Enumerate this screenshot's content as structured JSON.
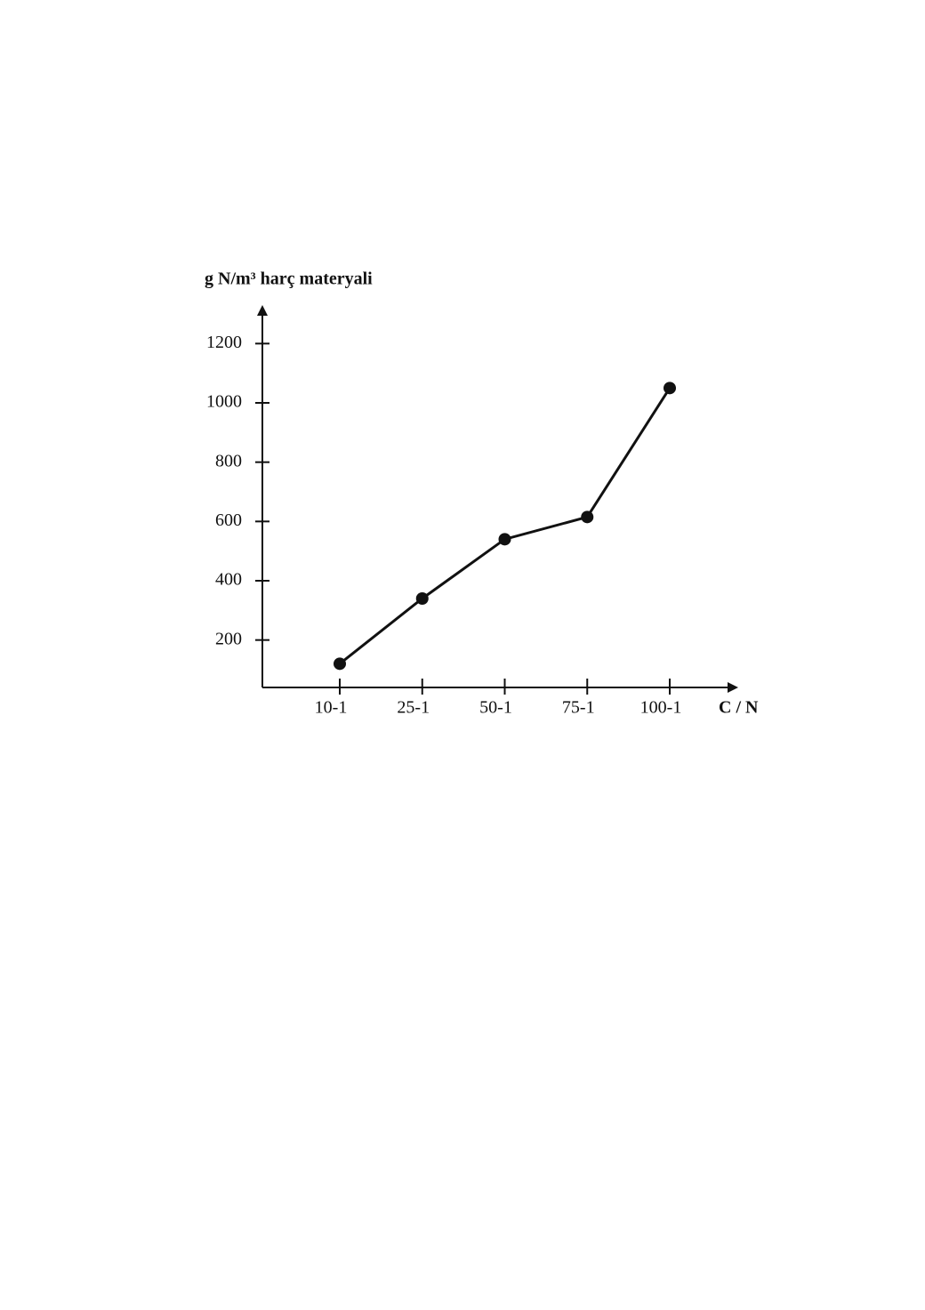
{
  "chart_data": {
    "type": "line",
    "y_label": "g N/m³ harç materyali",
    "x_label": "C / N",
    "categories": [
      "10-1",
      "25-1",
      "50-1",
      "75-1",
      "100-1"
    ],
    "values": [
      120,
      340,
      540,
      615,
      1050
    ],
    "color": "#111111",
    "ylim": [
      40,
      1300
    ],
    "yticks": [
      200,
      400,
      600,
      800,
      1000,
      1200
    ],
    "grid": false
  }
}
